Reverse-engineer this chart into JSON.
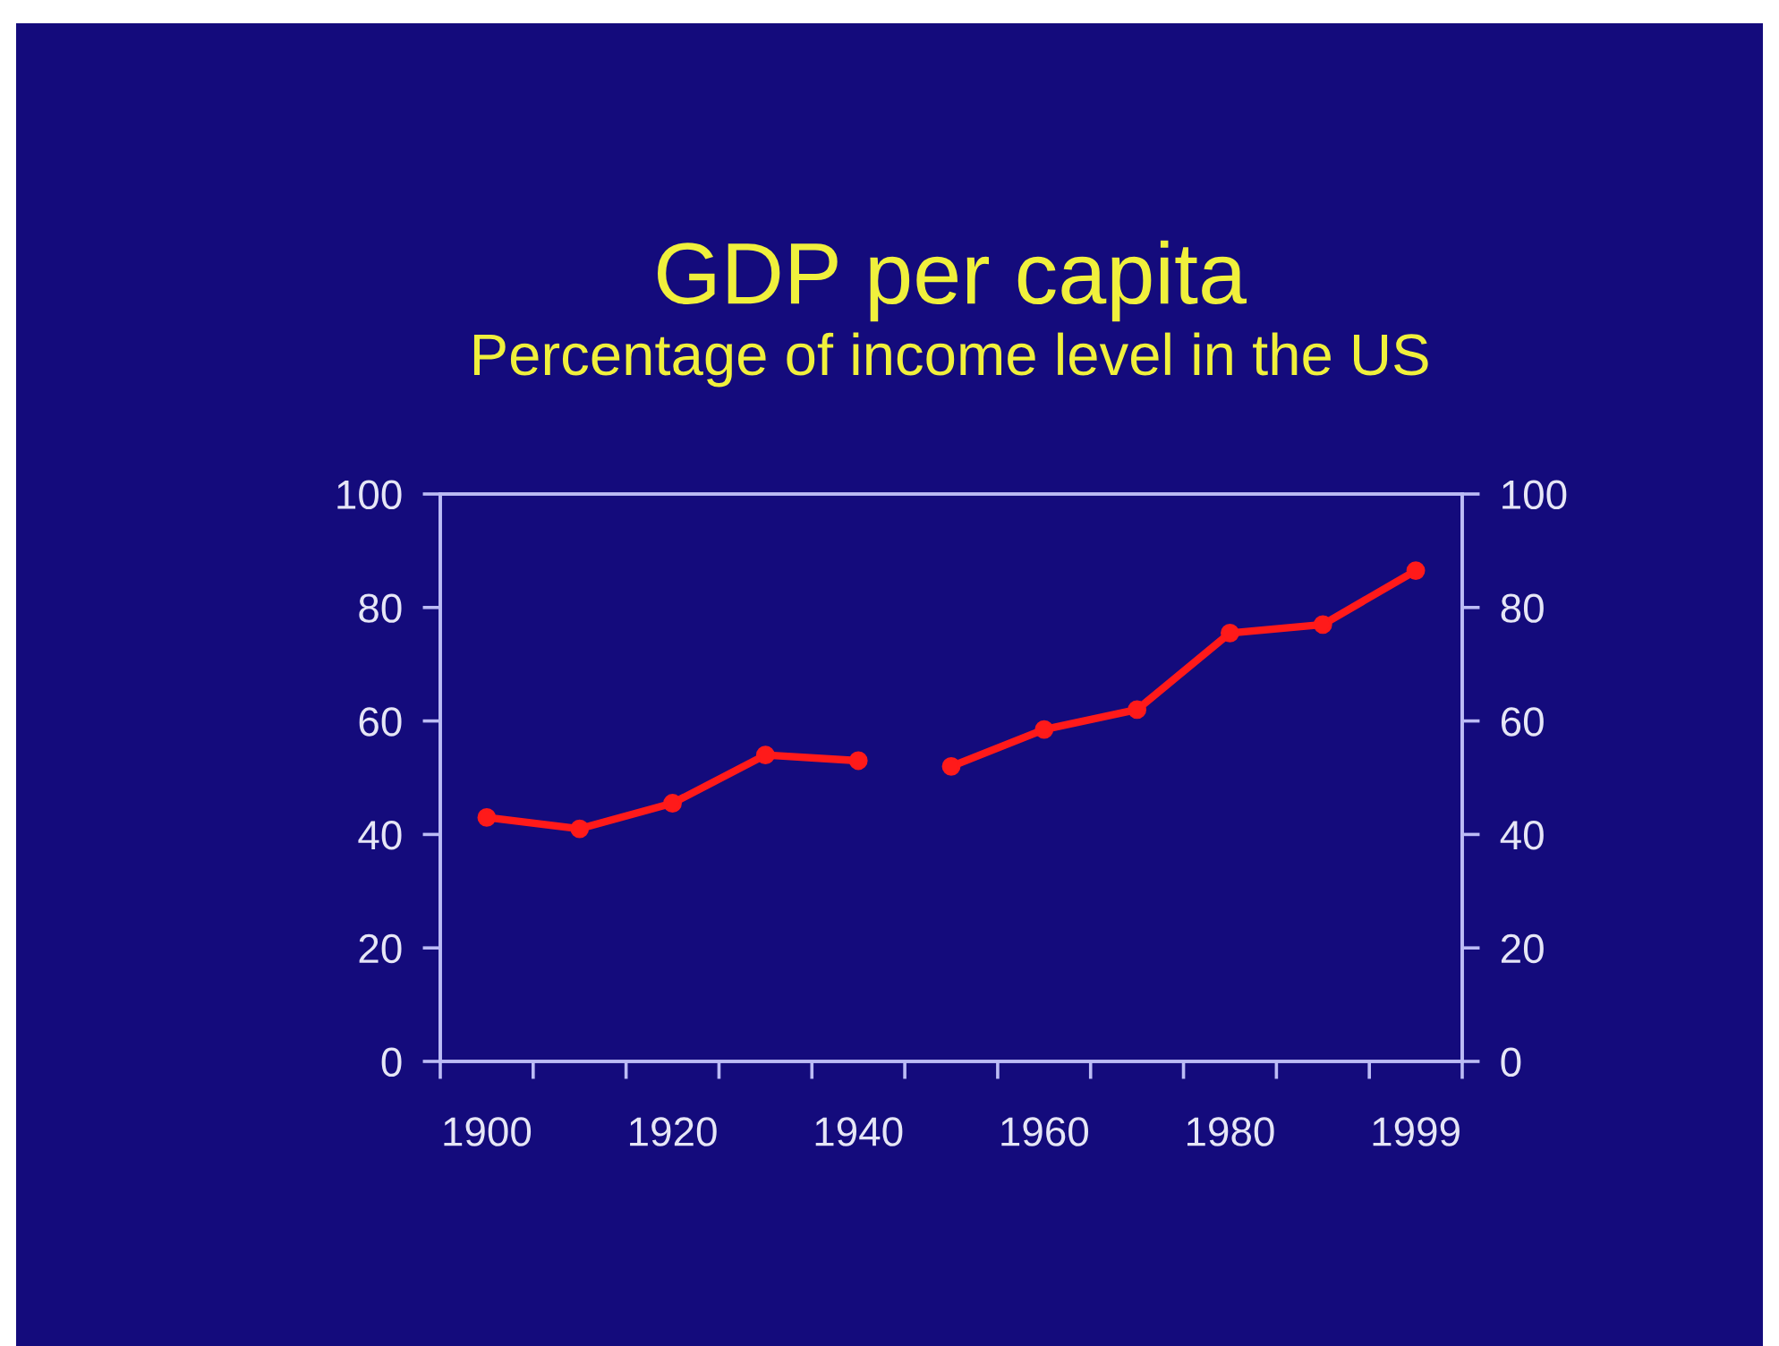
{
  "chart_data": {
    "type": "line",
    "title": "GDP per capita",
    "subtitle": "Percentage of income level in the US",
    "categories": [
      "1900",
      null,
      "1920",
      null,
      "1940",
      null,
      "1960",
      null,
      "1980",
      null,
      "1999"
    ],
    "series": [
      {
        "color": "#ff1a1a",
        "values": [
          43,
          41,
          45.5,
          54,
          53,
          null,
          null,
          null,
          null,
          null,
          null
        ]
      },
      {
        "color": "#ff1a1a",
        "values": [
          null,
          null,
          null,
          null,
          null,
          52,
          58.5,
          62,
          75.5,
          77,
          86.5
        ]
      }
    ],
    "ylim": [
      0,
      100
    ],
    "yticks": [
      0,
      20,
      40,
      60,
      80,
      100
    ],
    "y2lim": [
      0,
      100
    ],
    "y2ticks": [
      0,
      20,
      40,
      60,
      80,
      100
    ],
    "marker": "circle",
    "line_style": "solid"
  }
}
